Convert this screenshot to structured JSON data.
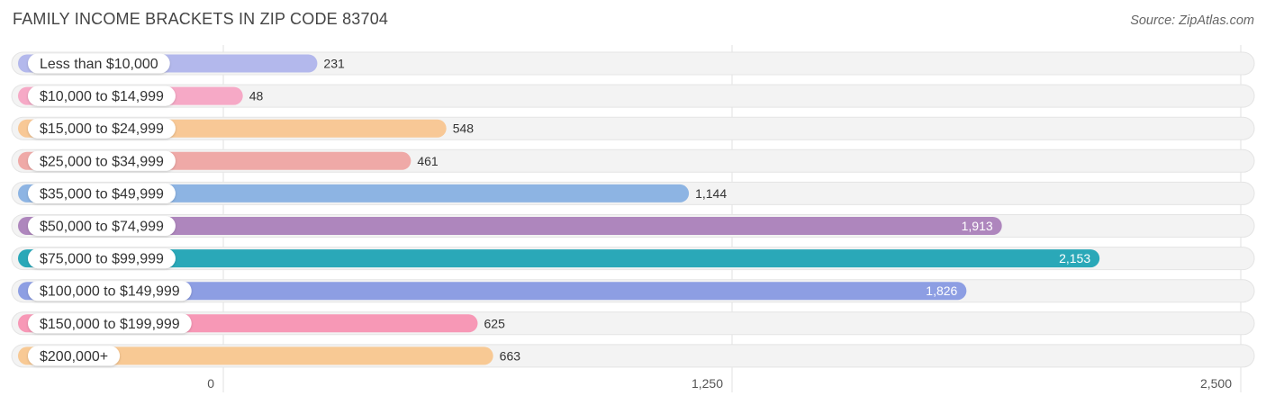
{
  "header": {
    "title": "FAMILY INCOME BRACKETS IN ZIP CODE 83704",
    "source": "Source: ZipAtlas.com"
  },
  "chart_data": {
    "type": "bar",
    "orientation": "horizontal",
    "title": "FAMILY INCOME BRACKETS IN ZIP CODE 83704",
    "categories": [
      "Less than $10,000",
      "$10,000 to $14,999",
      "$15,000 to $24,999",
      "$25,000 to $34,999",
      "$35,000 to $49,999",
      "$50,000 to $74,999",
      "$75,000 to $99,999",
      "$100,000 to $149,999",
      "$150,000 to $199,999",
      "$200,000+"
    ],
    "values": [
      231,
      48,
      548,
      461,
      1144,
      1913,
      2153,
      1826,
      625,
      663
    ],
    "value_labels": [
      "231",
      "48",
      "548",
      "461",
      "1,144",
      "1,913",
      "2,153",
      "1,826",
      "625",
      "663"
    ],
    "colors": [
      "#b3b8ec",
      "#f6a9c6",
      "#f8c896",
      "#efa9a7",
      "#8db4e3",
      "#ae86bd",
      "#2aa8b8",
      "#8d9ee3",
      "#f798b6",
      "#f8c994"
    ],
    "xlim": [
      0,
      2500
    ],
    "xticks": [
      0,
      1250,
      2500
    ],
    "xtick_labels": [
      "0",
      "1,250",
      "2,500"
    ],
    "grid": true,
    "legend": "none"
  }
}
